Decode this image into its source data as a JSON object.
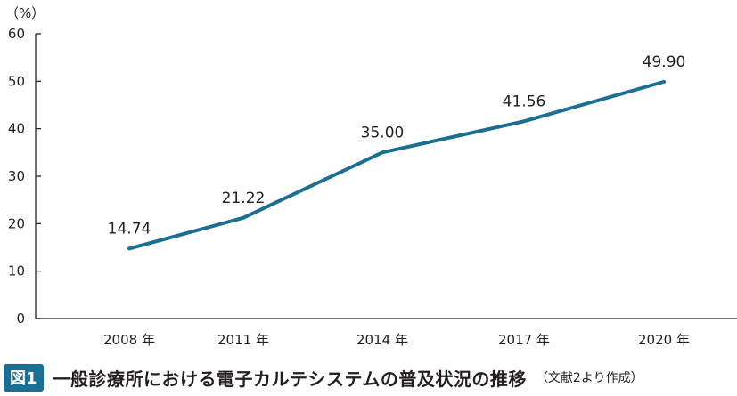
{
  "chart_data": {
    "type": "line",
    "categories": [
      "2008 年",
      "2011 年",
      "2014 年",
      "2017 年",
      "2020 年"
    ],
    "series": [
      {
        "values": [
          14.74,
          21.22,
          35.0,
          41.56,
          49.9
        ]
      }
    ],
    "data_labels": [
      "14.74",
      "21.22",
      "35.00",
      "41.56",
      "49.90"
    ],
    "yticks": [
      "0",
      "10",
      "20",
      "30",
      "40",
      "50",
      "60"
    ],
    "ylim": [
      0,
      60
    ],
    "yunit": "（%）",
    "grid": false,
    "line_color": "#1a6f93"
  },
  "caption": {
    "badge": "図1",
    "title": "一般診療所における電子カルテシステムの普及状況の推移",
    "source": "（文献2より作成）"
  },
  "colors": {
    "axis": "#231f20",
    "badge": "#1a6f93"
  }
}
